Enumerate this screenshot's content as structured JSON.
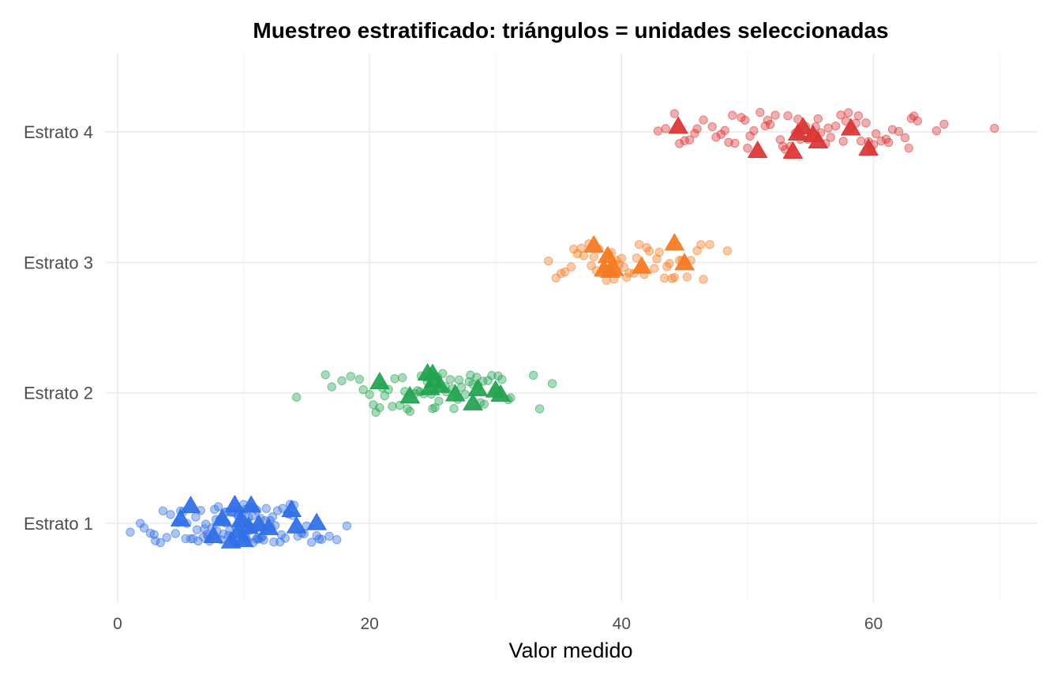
{
  "chart_data": {
    "type": "scatter",
    "title": "Muestreo estratificado: triángulos = unidades seleccionadas",
    "subtitle": "",
    "xlabel": "Valor medido",
    "ylabel": "",
    "xlim": [
      -1,
      73
    ],
    "x_ticks": [
      0,
      20,
      40,
      60
    ],
    "categories": [
      "Estrato 1",
      "Estrato 2",
      "Estrato 3",
      "Estrato 4"
    ],
    "grid": true,
    "legend": "none",
    "jitter_height": 0.15,
    "markers": {
      "population": "circle",
      "selected": "triangle"
    },
    "series": [
      {
        "category": "Estrato 1",
        "color": "#2f6fe6",
        "population": [
          1.8,
          2.1,
          2.6,
          3.0,
          3.4,
          3.9,
          4.2,
          4.6,
          5.0,
          5.2,
          5.5,
          5.8,
          6.0,
          6.2,
          6.4,
          6.6,
          6.8,
          7.0,
          7.1,
          7.3,
          7.5,
          7.6,
          7.8,
          8.0,
          8.1,
          8.2,
          8.4,
          8.5,
          8.6,
          8.8,
          8.9,
          9.0,
          9.1,
          9.2,
          9.3,
          9.4,
          9.5,
          9.6,
          9.7,
          9.8,
          9.9,
          10.0,
          10.1,
          10.2,
          10.3,
          10.4,
          10.5,
          10.6,
          10.7,
          10.8,
          10.9,
          11.0,
          11.1,
          11.2,
          11.3,
          11.4,
          11.5,
          11.6,
          11.8,
          12.0,
          12.1,
          12.3,
          12.5,
          12.7,
          12.9,
          13.1,
          13.3,
          13.5,
          13.7,
          14.0,
          14.3,
          14.6,
          15.0,
          15.4,
          15.8,
          16.2,
          16.8,
          17.4,
          18.2,
          1.0,
          2.9,
          3.6,
          4.8,
          5.4,
          6.3,
          7.2,
          7.9,
          8.7,
          9.35,
          9.95,
          10.45,
          11.05,
          11.7,
          12.4,
          13.0,
          13.9,
          14.8,
          16.0,
          6.9,
          8.3,
          9.55,
          10.15,
          10.75,
          12.2,
          13.6,
          7.7,
          9.15,
          11.35
        ],
        "selected": [
          5.0,
          5.8,
          7.6,
          9.0,
          9.6,
          10.0,
          10.4,
          11.2,
          12.0,
          13.8,
          14.2,
          15.8,
          8.3,
          9.3,
          9.8,
          10.6
        ]
      },
      {
        "category": "Estrato 2",
        "color": "#22a350",
        "population": [
          14.2,
          16.5,
          17.0,
          17.8,
          18.5,
          19.2,
          20.0,
          20.5,
          21.0,
          21.5,
          22.0,
          22.4,
          22.8,
          23.2,
          23.6,
          24.0,
          24.3,
          24.6,
          24.9,
          25.2,
          25.5,
          25.8,
          26.1,
          26.4,
          26.7,
          27.0,
          27.3,
          27.6,
          27.9,
          28.2,
          28.5,
          28.8,
          29.1,
          29.4,
          29.7,
          30.0,
          30.5,
          31.0,
          33.0,
          33.5,
          34.5,
          19.5,
          20.8,
          21.8,
          23.0,
          24.1,
          25.0,
          26.0,
          27.1,
          28.0,
          29.0,
          30.2,
          22.6,
          23.8,
          26.6,
          28.6,
          20.3,
          31.2,
          25.4,
          21.2
        ],
        "selected": [
          20.8,
          23.2,
          24.6,
          24.8,
          25.1,
          25.6,
          26.8,
          28.2,
          28.6,
          30.0,
          30.4,
          25.0
        ]
      },
      {
        "category": "Estrato 3",
        "color": "#f57a22",
        "population": [
          34.2,
          34.8,
          35.5,
          36.0,
          36.5,
          37.0,
          37.4,
          37.8,
          38.2,
          38.6,
          39.0,
          39.4,
          39.8,
          40.2,
          40.6,
          41.0,
          41.4,
          41.8,
          42.2,
          42.6,
          43.0,
          43.4,
          43.8,
          44.2,
          44.6,
          45.0,
          45.5,
          46.0,
          46.5,
          47.0,
          48.4,
          36.8,
          38.0,
          39.2,
          40.4,
          41.6,
          42.8,
          44.0,
          45.2,
          37.6,
          40.0,
          42.0,
          43.6,
          38.8,
          41.2,
          35.2,
          39.6,
          44.8,
          36.2,
          46.3
        ],
        "selected": [
          37.8,
          38.6,
          38.9,
          39.1,
          39.4,
          41.6,
          44.2,
          45.0
        ]
      },
      {
        "category": "Estrato 4",
        "color": "#dc3535",
        "population": [
          42.9,
          43.5,
          44.2,
          45.0,
          45.8,
          46.5,
          47.2,
          47.9,
          48.5,
          49.0,
          49.5,
          50.0,
          50.5,
          51.0,
          51.4,
          51.8,
          52.2,
          52.6,
          53.0,
          53.4,
          53.8,
          54.2,
          54.6,
          55.0,
          55.4,
          55.8,
          56.2,
          56.6,
          57.0,
          57.4,
          57.8,
          58.2,
          58.6,
          59.0,
          59.4,
          59.8,
          60.2,
          60.6,
          61.0,
          61.5,
          62.0,
          62.5,
          63.0,
          63.5,
          65.0,
          65.6,
          69.6,
          44.6,
          46.0,
          47.5,
          48.8,
          50.2,
          51.6,
          53.2,
          54.8,
          56.4,
          58.0,
          59.6,
          61.2,
          62.8,
          45.4,
          49.8,
          52.8,
          55.6,
          57.6,
          60.0,
          63.2,
          48.2,
          54.0,
          58.8
        ],
        "selected": [
          44.5,
          50.8,
          53.6,
          54.0,
          54.4,
          55.2,
          55.6,
          58.2,
          59.6
        ]
      }
    ]
  }
}
